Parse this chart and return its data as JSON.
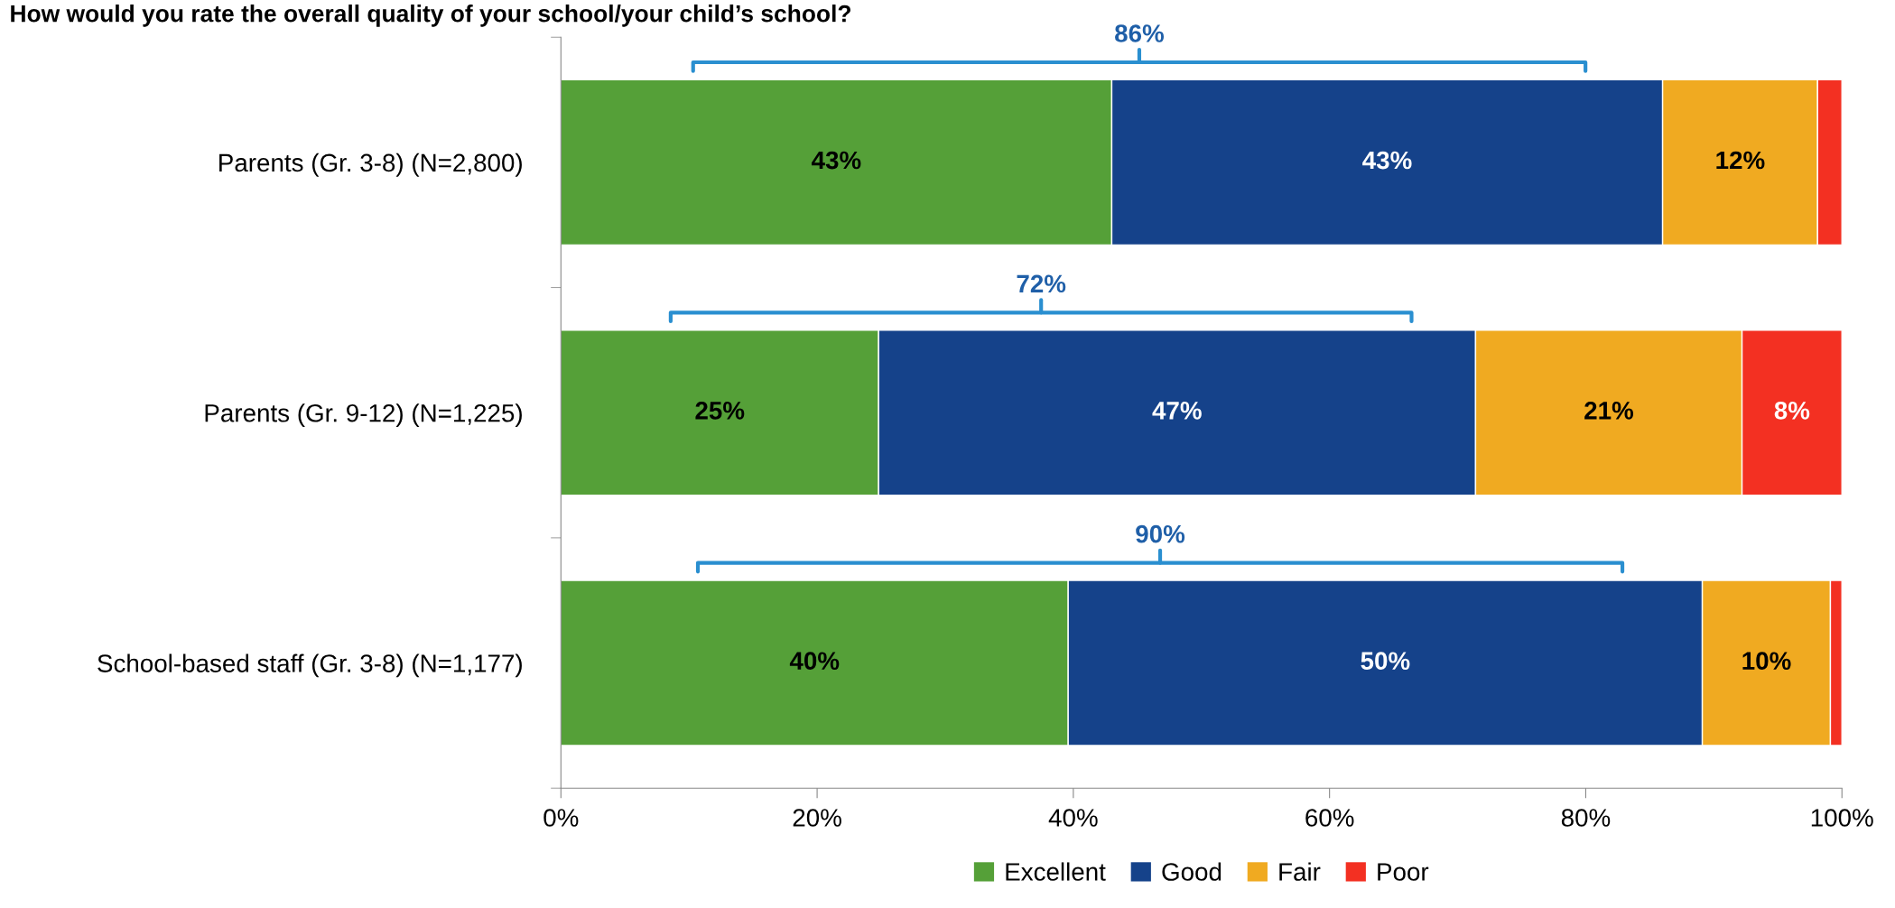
{
  "chart_data": {
    "type": "bar",
    "orientation": "horizontal",
    "stacked": true,
    "title": "How would you rate the overall quality of your school/your child’s school?",
    "categories": [
      "Parents (Gr. 3-8) (N=2,800)",
      "Parents (Gr. 9-12) (N=1,225)",
      "School-based staff (Gr. 3-8) (N=1,177)"
    ],
    "series": [
      {
        "name": "Excellent",
        "color": "#55a038",
        "values": [
          43.0,
          24.8,
          39.6
        ],
        "value_labels": [
          "43%",
          "25%",
          "40%"
        ]
      },
      {
        "name": "Good",
        "color": "#15428a",
        "values": [
          43.0,
          46.6,
          49.5
        ],
        "value_labels": [
          "43%",
          "47%",
          "50%"
        ]
      },
      {
        "name": "Fair",
        "color": "#f0aa21",
        "values": [
          12.1,
          20.8,
          10.0
        ],
        "value_labels": [
          "12%",
          "21%",
          "10%"
        ]
      },
      {
        "name": "Poor",
        "color": "#f33022",
        "values": [
          1.9,
          7.8,
          0.9
        ],
        "value_labels": [
          null,
          "8%",
          null
        ]
      }
    ],
    "annotations": [
      "86%",
      "72%",
      "90%"
    ],
    "xlim": [
      0,
      100
    ],
    "xticks": [
      {
        "value": 0,
        "label": "0%"
      },
      {
        "value": 20,
        "label": "20%"
      },
      {
        "value": 40,
        "label": "40%"
      },
      {
        "value": 60,
        "label": "60%"
      },
      {
        "value": 80,
        "label": "80%"
      },
      {
        "value": 100,
        "label": "100%"
      }
    ],
    "grid": false,
    "legend": "bottom"
  }
}
